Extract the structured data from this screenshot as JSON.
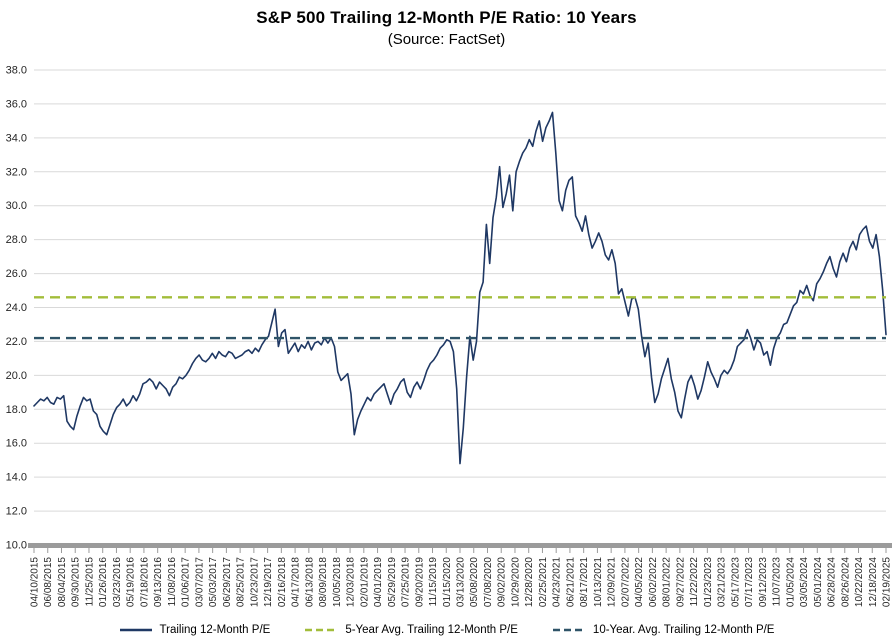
{
  "chart_data": {
    "type": "line",
    "title": "S&P 500 Trailing 12-Month P/E Ratio: 10 Years",
    "subtitle": "(Source: FactSet)",
    "ylim": [
      10.0,
      38.0
    ],
    "ytick_step": 2.0,
    "ytick_labels": [
      "38.0",
      "36.0",
      "34.0",
      "32.0",
      "30.0",
      "28.0",
      "26.0",
      "24.0",
      "22.0",
      "20.0",
      "18.0",
      "16.0",
      "14.0",
      "12.0",
      "10.0"
    ],
    "grid": "horizontal",
    "grid_color": "#d9d9d9",
    "axis_color": "#9b9b9b",
    "legend_position": "bottom",
    "xtick_labels": [
      "04/10/2015",
      "06/08/2015",
      "08/04/2015",
      "09/30/2015",
      "11/25/2015",
      "01/26/2016",
      "03/23/2016",
      "05/19/2016",
      "07/18/2016",
      "09/13/2016",
      "11/08/2016",
      "01/06/2017",
      "03/07/2017",
      "05/03/2017",
      "06/29/2017",
      "08/25/2017",
      "10/23/2017",
      "12/19/2017",
      "02/16/2018",
      "04/17/2018",
      "06/13/2018",
      "08/09/2018",
      "10/05/2018",
      "12/03/2018",
      "02/01/2019",
      "04/01/2019",
      "05/29/2019",
      "07/25/2019",
      "09/20/2019",
      "11/15/2019",
      "01/15/2020",
      "03/13/2020",
      "05/08/2020",
      "07/08/2020",
      "09/02/2020",
      "10/29/2020",
      "12/28/2020",
      "02/25/2021",
      "04/23/2021",
      "06/21/2021",
      "08/17/2021",
      "10/13/2021",
      "12/09/2021",
      "02/07/2022",
      "04/05/2022",
      "06/02/2022",
      "08/01/2022",
      "09/27/2022",
      "11/22/2022",
      "01/23/2023",
      "03/21/2023",
      "05/17/2023",
      "07/17/2023",
      "09/12/2023",
      "11/07/2023",
      "01/05/2024",
      "03/05/2024",
      "05/01/2024",
      "06/28/2024",
      "08/26/2024",
      "10/22/2024",
      "12/18/2024",
      "02/19/2025"
    ],
    "series": [
      {
        "name": "Trailing 12-Month P/E",
        "color": "#1f3864",
        "style": "solid",
        "x_start": "04/10/2015",
        "x_end": "02/19/2025",
        "values": [
          18.2,
          18.4,
          18.6,
          18.5,
          18.7,
          18.4,
          18.3,
          18.7,
          18.6,
          18.8,
          17.3,
          17.0,
          16.8,
          17.6,
          18.2,
          18.7,
          18.5,
          18.6,
          17.9,
          17.7,
          17.0,
          16.7,
          16.5,
          17.1,
          17.7,
          18.1,
          18.3,
          18.6,
          18.2,
          18.4,
          18.8,
          18.5,
          18.9,
          19.5,
          19.6,
          19.8,
          19.6,
          19.2,
          19.6,
          19.4,
          19.2,
          18.8,
          19.3,
          19.5,
          19.9,
          19.8,
          20.0,
          20.3,
          20.7,
          21.0,
          21.2,
          20.9,
          20.8,
          21.0,
          21.3,
          21.0,
          21.4,
          21.2,
          21.1,
          21.4,
          21.3,
          21.0,
          21.1,
          21.2,
          21.4,
          21.5,
          21.3,
          21.6,
          21.4,
          21.8,
          22.1,
          22.3,
          23.1,
          23.9,
          21.7,
          22.5,
          22.7,
          21.3,
          21.6,
          21.9,
          21.4,
          21.8,
          21.6,
          22.0,
          21.5,
          21.9,
          22.0,
          21.8,
          22.2,
          21.9,
          22.2,
          21.7,
          20.2,
          19.7,
          19.9,
          20.1,
          18.9,
          16.5,
          17.4,
          17.9,
          18.3,
          18.7,
          18.5,
          18.9,
          19.1,
          19.3,
          19.5,
          18.9,
          18.3,
          18.9,
          19.2,
          19.6,
          19.8,
          19.0,
          18.7,
          19.3,
          19.6,
          19.2,
          19.7,
          20.3,
          20.7,
          20.9,
          21.2,
          21.6,
          21.8,
          22.1,
          22.0,
          21.4,
          19.2,
          14.8,
          16.9,
          19.9,
          22.3,
          20.9,
          22.0,
          24.9,
          25.5,
          28.9,
          26.6,
          29.3,
          30.5,
          32.3,
          29.9,
          30.7,
          31.8,
          29.7,
          32.0,
          32.6,
          33.1,
          33.4,
          33.9,
          33.5,
          34.4,
          35.0,
          33.8,
          34.6,
          35.0,
          35.5,
          33.1,
          30.3,
          29.7,
          30.9,
          31.5,
          31.7,
          29.4,
          29.0,
          28.5,
          29.4,
          28.3,
          27.5,
          27.9,
          28.4,
          27.9,
          27.1,
          26.8,
          27.4,
          26.6,
          24.8,
          25.1,
          24.3,
          23.5,
          24.5,
          24.6,
          23.9,
          22.3,
          21.1,
          21.9,
          19.9,
          18.4,
          18.9,
          19.8,
          20.4,
          21.0,
          19.8,
          19.0,
          17.9,
          17.5,
          18.6,
          19.6,
          20.0,
          19.4,
          18.6,
          19.1,
          19.9,
          20.8,
          20.2,
          19.8,
          19.3,
          20.0,
          20.3,
          20.1,
          20.4,
          20.9,
          21.7,
          21.9,
          22.1,
          22.7,
          22.2,
          21.5,
          22.1,
          21.9,
          21.2,
          21.4,
          20.6,
          21.6,
          22.2,
          22.5,
          23.0,
          23.1,
          23.6,
          24.1,
          24.3,
          25.0,
          24.8,
          25.3,
          24.7,
          24.4,
          25.4,
          25.7,
          26.1,
          26.6,
          27.0,
          26.3,
          25.8,
          26.7,
          27.2,
          26.7,
          27.5,
          27.9,
          27.4,
          28.3,
          28.6,
          28.8,
          27.9,
          27.5,
          28.3,
          27.0,
          25.0,
          22.4
        ]
      },
      {
        "name": "5-Year Avg. Trailing 12-Month P/E",
        "color": "#a2bd3a",
        "style": "dashed",
        "value": 24.6
      },
      {
        "name": "10-Year. Avg. Trailing 12-Month P/E",
        "color": "#2f5468",
        "style": "dashed",
        "value": 22.2
      }
    ]
  }
}
